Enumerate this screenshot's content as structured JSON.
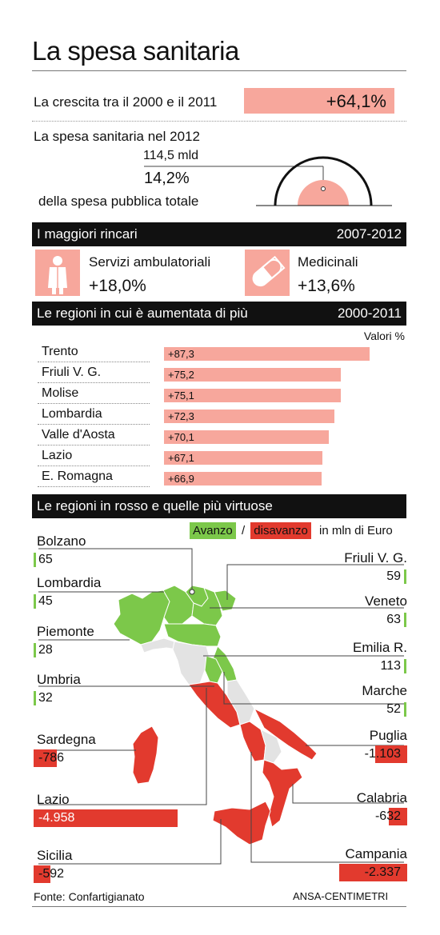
{
  "header": {
    "title": "La spesa sanitaria"
  },
  "crescita": {
    "label": "La crescita tra il 2000 e il 2011",
    "value": "+64,1%"
  },
  "spesa2012": {
    "label": "La spesa sanitaria nel 2012",
    "amount": "114,5 mld",
    "percent": "14,2%",
    "percent_label": "della spesa pubblica totale",
    "share": 0.142
  },
  "rincari": {
    "title": "I maggiori rincari",
    "period": "2007-2012",
    "items": [
      {
        "icon": "doctor-icon",
        "label": "Servizi ambulatoriali",
        "value": "+18,0%"
      },
      {
        "icon": "pill-icon",
        "label": "Medicinali",
        "value": "+13,6%"
      }
    ]
  },
  "aumentate": {
    "title": "Le regioni in cui è aumentata di più",
    "period": "2000-2011",
    "unit_label": "Valori %"
  },
  "virtuose": {
    "title": "Le regioni in rosso e quelle più virtuose",
    "legend_avanzo": "Avanzo",
    "legend_sep": "/",
    "legend_disavanzo": "disavanzo",
    "legend_unit": "in mln di Euro"
  },
  "colors": {
    "pink": "#f7a79c",
    "green": "#7cc84a",
    "red": "#e23a2e",
    "grey": "#e3e3e3"
  },
  "footer": {
    "source": "Fonte: Confartigianato",
    "credit": "ANSA-CENTIMETRI"
  },
  "chart_data": [
    {
      "type": "bar",
      "categories": [
        "Trento",
        "Friuli V. G.",
        "Molise",
        "Lombardia",
        "Valle d'Aosta",
        "Lazio",
        "E. Romagna"
      ],
      "values": [
        87.3,
        75.2,
        75.1,
        72.3,
        70.1,
        67.1,
        66.9
      ],
      "labels": [
        "+87,3",
        "+75,2",
        "+75,1",
        "+72,3",
        "+70,1",
        "+67,1",
        "+66,9"
      ]
    },
    {
      "type": "bar",
      "categories": [
        "Bolzano",
        "Lombardia",
        "Piemonte",
        "Umbria",
        "Sardegna",
        "Lazio",
        "Sicilia",
        "Friuli V. G.",
        "Veneto",
        "Emilia R.",
        "Marche",
        "Puglia",
        "Calabria",
        "Campania"
      ],
      "values": [
        65,
        45,
        28,
        32,
        -786,
        -4958,
        -592,
        59,
        63,
        113,
        52,
        -1103,
        -632,
        -2337
      ],
      "labels": [
        "65",
        "45",
        "28",
        "32",
        "-786",
        "-4.958",
        "-592",
        "59",
        "63",
        "113",
        "52",
        "-1.103",
        "-632",
        "-2.337"
      ]
    }
  ]
}
